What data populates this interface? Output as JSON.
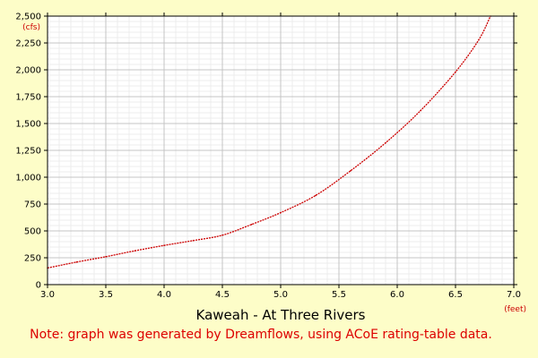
{
  "chart_data": {
    "type": "line",
    "title": "Kaweah - At Three Rivers",
    "note": "Note: graph was generated by Dreamflows, using ACoE rating-table data.",
    "xlabel": "(feet)",
    "ylabel": "(cfs)",
    "xlim": [
      3.0,
      7.0
    ],
    "ylim": [
      0,
      2500
    ],
    "x_ticks": [
      3.0,
      3.5,
      4.0,
      4.5,
      5.0,
      5.5,
      6.0,
      6.5,
      7.0
    ],
    "x_tick_labels": [
      "3.0",
      "3.5",
      "4.0",
      "4.5",
      "5.0",
      "5.5",
      "6.0",
      "6.5",
      "7.0"
    ],
    "y_ticks": [
      0,
      250,
      500,
      750,
      1000,
      1250,
      1500,
      1750,
      2000,
      2250,
      2500
    ],
    "y_tick_labels": [
      "0",
      "250",
      "500",
      "750",
      "1,000",
      "1,250",
      "1,500",
      "1,750",
      "2,000",
      "2,250",
      "2,500"
    ],
    "grid": true,
    "colors": {
      "background": "#fdfdc8",
      "plot_background": "#ffffff",
      "grid_major": "#c4c4c4",
      "grid_minor": "#ececec",
      "series": "#cc0000",
      "unit_labels": "#cc0000",
      "note": "#dd0000"
    },
    "series": [
      {
        "x": [
          3.0,
          3.25,
          3.5,
          3.75,
          4.0,
          4.25,
          4.5,
          4.75,
          5.0,
          5.3,
          5.6,
          5.9,
          6.2,
          6.5,
          6.7,
          6.8
        ],
        "y": [
          155,
          210,
          260,
          315,
          365,
          410,
          460,
          560,
          670,
          830,
          1060,
          1320,
          1620,
          1980,
          2280,
          2500
        ]
      }
    ]
  }
}
